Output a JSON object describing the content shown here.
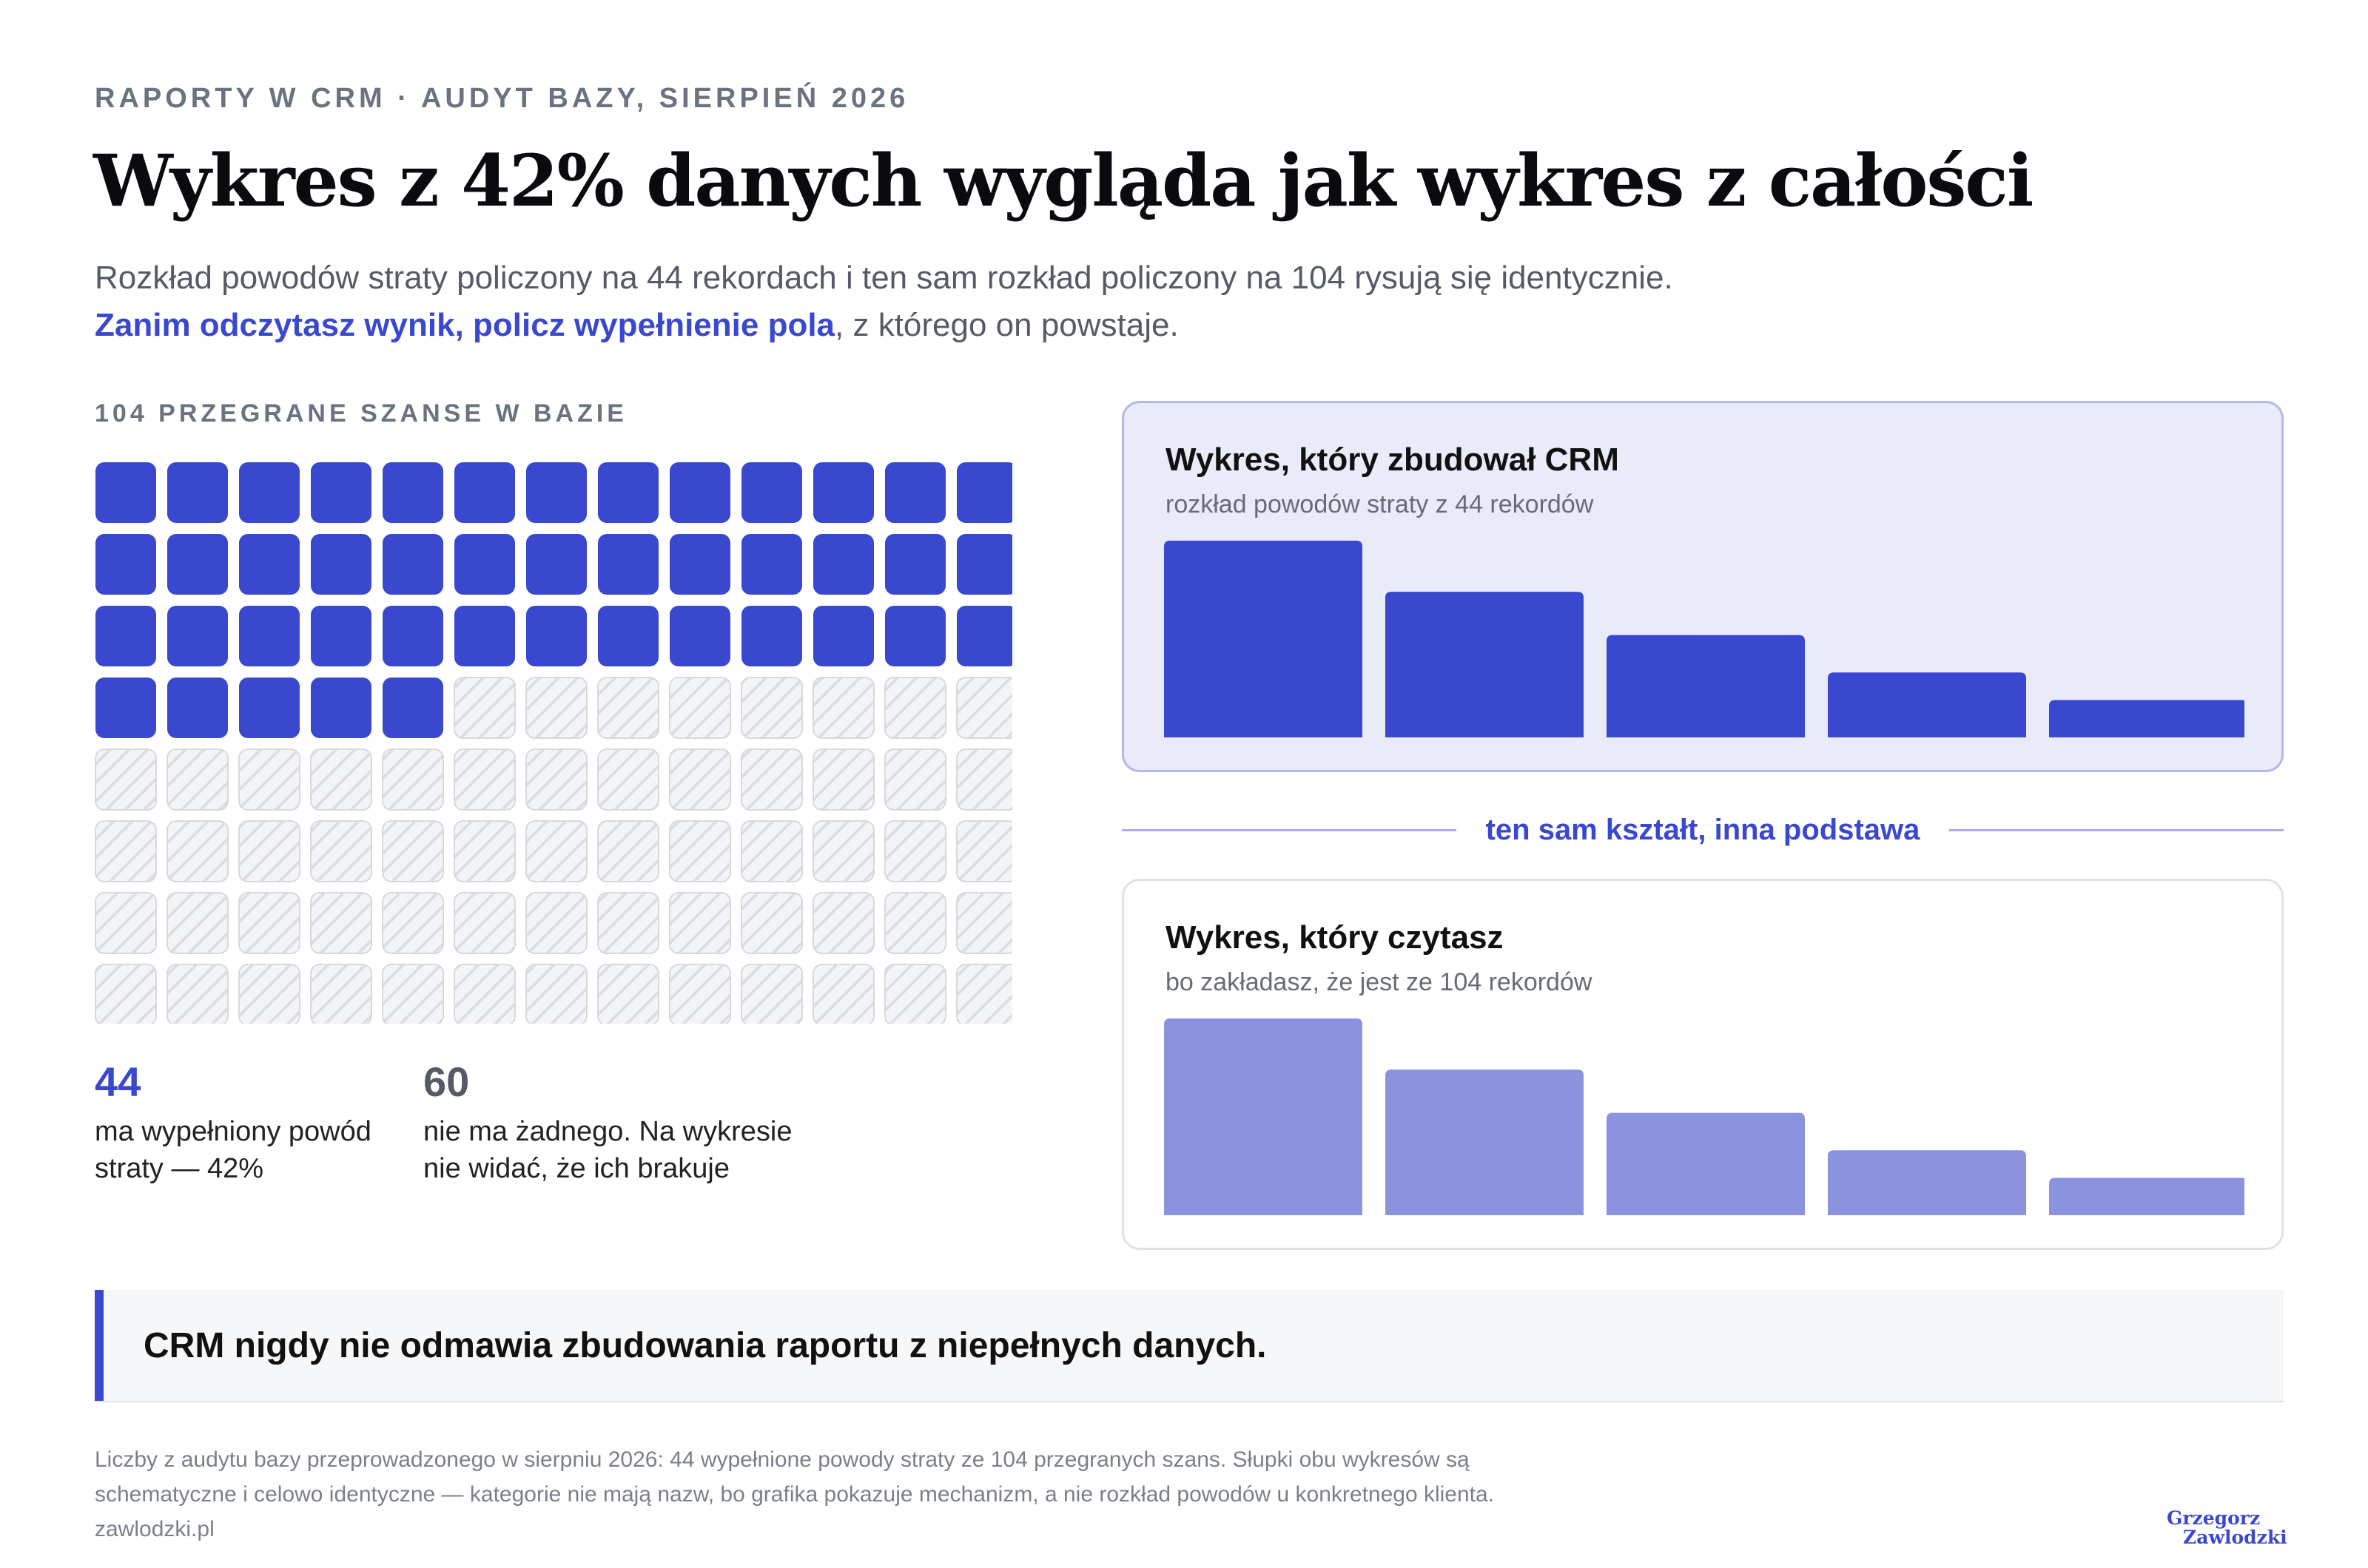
{
  "header": {
    "eyebrow": "RAPORTY W CRM · AUDYT BAZY, SIERPIEŃ 2026",
    "title": "Wykres z 42% danych wygląda jak wykres z całości",
    "subtitle_line1": "Rozkład powodów straty policzony na 44 rekordach i ten sam rozkład policzony na 104 rysują się identycznie.",
    "subtitle_highlight": "Zanim odczytasz wynik, policz wypełnienie pola",
    "subtitle_rest": ", z którego on powstaje."
  },
  "waffle": {
    "label": "104 PRZEGRANE SZANSE W BAZIE",
    "total": 104,
    "filled": 44,
    "columns": 13
  },
  "stats": {
    "filled_value": "44",
    "filled_text": "ma wypełniony powód straty — 42%",
    "empty_value": "60",
    "empty_text": "nie ma żadnego. Na wykresie nie widać, że ich brakuje"
  },
  "divider_label": "ten sam kształt, inna podstawa",
  "callout": "CRM nigdy nie odmawia zbudowania raportu z niepełnych danych.",
  "footnote": {
    "line1": "Liczby z audytu bazy przeprowadzonego w sierpniu 2026: 44 wypełnione powody straty ze 104 przegranych szans. Słupki obu wykresów są",
    "line2": "schematyczne i celowo identyczne — kategorie nie mają nazw, bo grafika pokazuje mechanizm, a nie rozkład powodów u konkretnego klienta.",
    "line3": "zawlodzki.pl"
  },
  "logo": {
    "line1": "Grzegorz",
    "line2": "Zawlodzki"
  },
  "colors": {
    "accent": "#3a48cf",
    "accent_light": "#8b92e0",
    "empty_cell": "#e2e4e8",
    "card_bg": "#e9ebf8"
  },
  "chart_data": [
    {
      "type": "bar",
      "title": "Wykres, który zbudował CRM",
      "subtitle": "rozkład powodów straty z 44 rekordów",
      "categories": [
        "",
        "",
        "",
        "",
        ""
      ],
      "values": [
        100,
        74,
        52,
        33,
        19
      ],
      "ylim": [
        0,
        100
      ],
      "color": "#3a48cf"
    },
    {
      "type": "bar",
      "title": "Wykres, który czytasz",
      "subtitle": "bo zakładasz, że jest ze 104 rekordów",
      "categories": [
        "",
        "",
        "",
        "",
        ""
      ],
      "values": [
        100,
        74,
        52,
        33,
        19
      ],
      "ylim": [
        0,
        100
      ],
      "color": "#8b92e0"
    }
  ]
}
